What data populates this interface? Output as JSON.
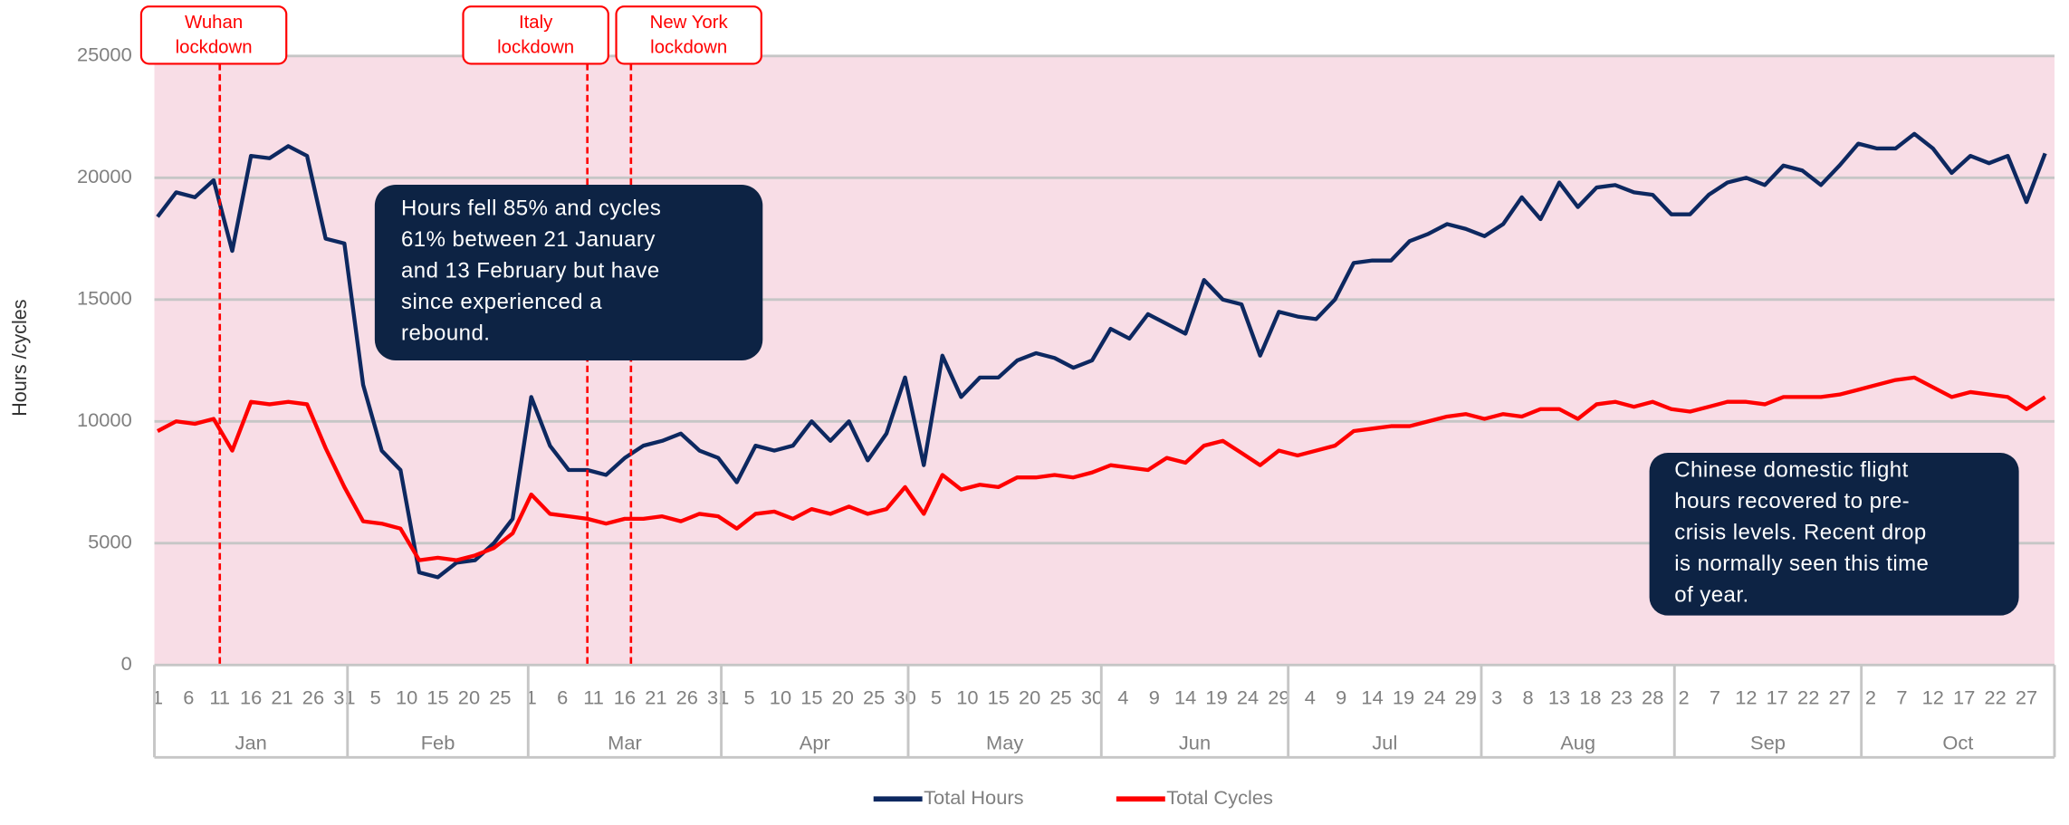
{
  "chart_data": {
    "type": "line",
    "y_label": "Hours /cycles",
    "ylim": [
      0,
      25000
    ],
    "yticks": [
      0,
      5000,
      10000,
      15000,
      20000,
      25000
    ],
    "grid": true,
    "xlim": [
      -0.5,
      304.5
    ],
    "x": [
      0,
      3,
      6,
      9,
      12,
      15,
      18,
      21,
      24,
      27,
      30,
      33,
      36,
      39,
      42,
      45,
      48,
      51,
      54,
      57,
      60,
      63,
      66,
      69,
      72,
      75,
      78,
      81,
      84,
      87,
      90,
      93,
      96,
      99,
      102,
      105,
      108,
      111,
      114,
      117,
      120,
      123,
      126,
      129,
      132,
      135,
      138,
      141,
      144,
      147,
      150,
      153,
      156,
      159,
      162,
      165,
      168,
      171,
      174,
      177,
      180,
      183,
      186,
      189,
      192,
      195,
      198,
      201,
      204,
      207,
      210,
      213,
      216,
      219,
      222,
      225,
      228,
      231,
      234,
      237,
      240,
      243,
      246,
      249,
      252,
      255,
      258,
      261,
      264,
      267,
      270,
      273,
      276,
      279,
      282,
      285,
      288,
      291,
      294,
      297,
      300,
      303
    ],
    "series": [
      {
        "name": "Total Hours",
        "color": "#0d2860",
        "values": [
          18400,
          19400,
          19200,
          19900,
          17000,
          20900,
          20800,
          21300,
          20900,
          17500,
          17300,
          11500,
          8800,
          8000,
          3800,
          3600,
          4200,
          4300,
          5000,
          6000,
          11000,
          9000,
          8000,
          8000,
          7800,
          8500,
          9000,
          9200,
          9500,
          8800,
          8500,
          7500,
          9000,
          8800,
          9000,
          10000,
          9200,
          10000,
          8400,
          9500,
          11800,
          8200,
          12700,
          11000,
          11800,
          11800,
          12500,
          12800,
          12600,
          12200,
          12500,
          13800,
          13400,
          14400,
          14000,
          13600,
          15800,
          15000,
          14800,
          12700,
          14500,
          14300,
          14200,
          15000,
          16500,
          16600,
          16600,
          17400,
          17700,
          18100,
          17900,
          17600,
          18100,
          19200,
          18300,
          19800,
          18800,
          19600,
          19700,
          19400,
          19300,
          18500,
          18500,
          19300,
          19800,
          20000,
          19700,
          20500,
          20300,
          19700,
          20500,
          21400,
          21200,
          21200,
          21800,
          21200,
          20200,
          20900,
          20600,
          20900,
          19000,
          21000
        ]
      },
      {
        "name": "Total Cycles",
        "color": "#ff0000",
        "values": [
          9600,
          10000,
          9900,
          10100,
          8800,
          10800,
          10700,
          10800,
          10700,
          8900,
          7300,
          5900,
          5800,
          5600,
          4300,
          4400,
          4300,
          4500,
          4800,
          5400,
          7000,
          6200,
          6100,
          6000,
          5800,
          6000,
          6000,
          6100,
          5900,
          6200,
          6100,
          5600,
          6200,
          6300,
          6000,
          6400,
          6200,
          6500,
          6200,
          6400,
          7300,
          6200,
          7800,
          7200,
          7400,
          7300,
          7700,
          7700,
          7800,
          7700,
          7900,
          8200,
          8100,
          8000,
          8500,
          8300,
          9000,
          9200,
          8700,
          8200,
          8800,
          8600,
          8800,
          9000,
          9600,
          9700,
          9800,
          9800,
          10000,
          10200,
          10300,
          10100,
          10300,
          10200,
          10500,
          10500,
          10100,
          10700,
          10800,
          10600,
          10800,
          10500,
          10400,
          10600,
          10800,
          10800,
          10700,
          11000,
          11000,
          11000,
          11100,
          11300,
          11500,
          11700,
          11800,
          11400,
          11000,
          11200,
          11100,
          11000,
          10500,
          11000
        ]
      }
    ],
    "xticks": [
      {
        "value": 0,
        "label": "1"
      },
      {
        "value": 5,
        "label": "6"
      },
      {
        "value": 10,
        "label": "11"
      },
      {
        "value": 15,
        "label": "16"
      },
      {
        "value": 20,
        "label": "21"
      },
      {
        "value": 25,
        "label": "26"
      },
      {
        "value": 30,
        "label": "31"
      },
      {
        "value": 35,
        "label": "5"
      },
      {
        "value": 40,
        "label": "10"
      },
      {
        "value": 45,
        "label": "15"
      },
      {
        "value": 50,
        "label": "20"
      },
      {
        "value": 55,
        "label": "25"
      },
      {
        "value": 60,
        "label": "1"
      },
      {
        "value": 65,
        "label": "6"
      },
      {
        "value": 70,
        "label": "11"
      },
      {
        "value": 75,
        "label": "16"
      },
      {
        "value": 80,
        "label": "21"
      },
      {
        "value": 85,
        "label": "26"
      },
      {
        "value": 90,
        "label": "31"
      },
      {
        "value": 95,
        "label": "5"
      },
      {
        "value": 100,
        "label": "10"
      },
      {
        "value": 105,
        "label": "15"
      },
      {
        "value": 110,
        "label": "20"
      },
      {
        "value": 115,
        "label": "25"
      },
      {
        "value": 120,
        "label": "30"
      },
      {
        "value": 125,
        "label": "5"
      },
      {
        "value": 130,
        "label": "10"
      },
      {
        "value": 135,
        "label": "15"
      },
      {
        "value": 140,
        "label": "20"
      },
      {
        "value": 145,
        "label": "25"
      },
      {
        "value": 150,
        "label": "30"
      },
      {
        "value": 155,
        "label": "4"
      },
      {
        "value": 160,
        "label": "9"
      },
      {
        "value": 165,
        "label": "14"
      },
      {
        "value": 170,
        "label": "19"
      },
      {
        "value": 175,
        "label": "24"
      },
      {
        "value": 180,
        "label": "29"
      },
      {
        "value": 185,
        "label": "4"
      },
      {
        "value": 190,
        "label": "9"
      },
      {
        "value": 195,
        "label": "14"
      },
      {
        "value": 200,
        "label": "19"
      },
      {
        "value": 205,
        "label": "24"
      },
      {
        "value": 210,
        "label": "29"
      },
      {
        "value": 215,
        "label": "3"
      },
      {
        "value": 220,
        "label": "8"
      },
      {
        "value": 225,
        "label": "13"
      },
      {
        "value": 230,
        "label": "18"
      },
      {
        "value": 235,
        "label": "23"
      },
      {
        "value": 240,
        "label": "28"
      },
      {
        "value": 245,
        "label": "2"
      },
      {
        "value": 250,
        "label": "7"
      },
      {
        "value": 255,
        "label": "12"
      },
      {
        "value": 260,
        "label": "17"
      },
      {
        "value": 265,
        "label": "22"
      },
      {
        "value": 270,
        "label": "27"
      },
      {
        "value": 275,
        "label": "2"
      },
      {
        "value": 280,
        "label": "7"
      },
      {
        "value": 285,
        "label": "12"
      },
      {
        "value": 290,
        "label": "17"
      },
      {
        "value": 295,
        "label": "22"
      },
      {
        "value": 300,
        "label": "27"
      }
    ],
    "months": [
      {
        "value": 0,
        "label": "Jan"
      },
      {
        "value": 31,
        "label": "Feb"
      },
      {
        "value": 60,
        "label": "Mar"
      },
      {
        "value": 91,
        "label": "Apr"
      },
      {
        "value": 121,
        "label": "May"
      },
      {
        "value": 152,
        "label": "Jun"
      },
      {
        "value": 182,
        "label": "Jul"
      },
      {
        "value": 213,
        "label": "Aug"
      },
      {
        "value": 244,
        "label": "Sep"
      },
      {
        "value": 274,
        "label": "Oct"
      }
    ],
    "events": [
      {
        "x": 10,
        "lines": [
          "Wuhan",
          "lockdown"
        ]
      },
      {
        "x": 69,
        "lines": [
          "Italy",
          "lockdown"
        ]
      },
      {
        "x": 76,
        "lines": [
          "New York",
          "lockdown"
        ]
      }
    ],
    "annotations": [
      {
        "lines": [
          "Hours fell 85% and cycles",
          "61% between 21 January",
          "and 13 February but have",
          "since experienced a",
          "rebound."
        ]
      },
      {
        "lines": [
          "Chinese domestic flight",
          "hours recovered to pre-",
          "crisis levels. Recent drop",
          "is normally seen this time",
          "of year."
        ]
      }
    ]
  }
}
